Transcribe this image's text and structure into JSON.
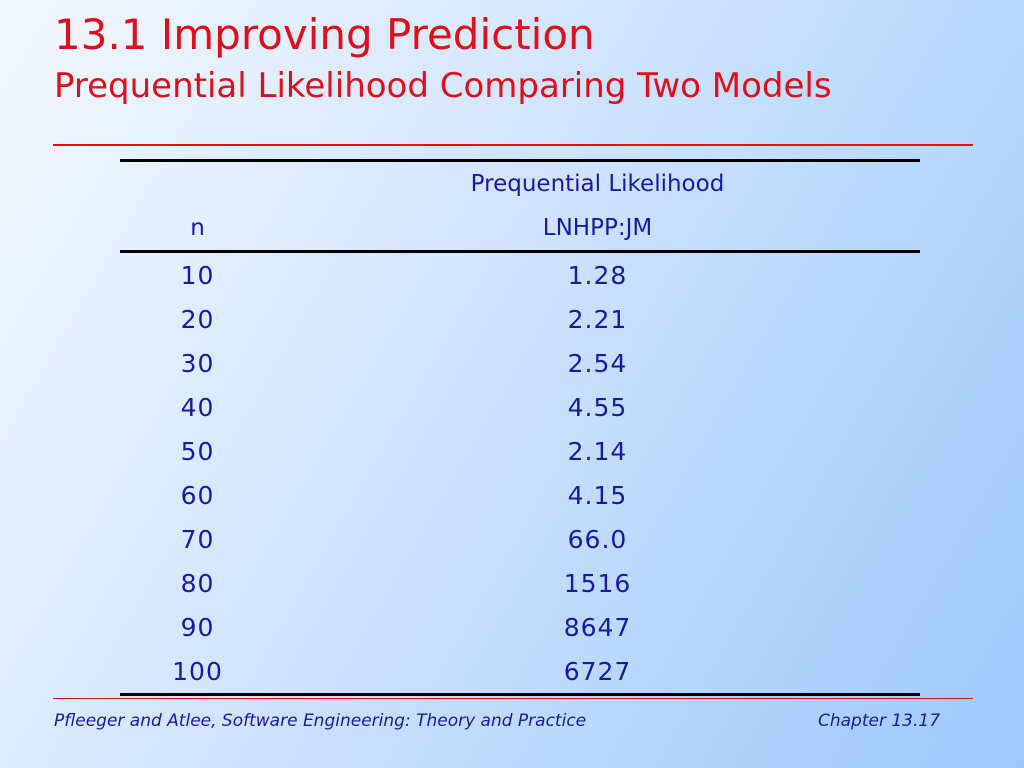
{
  "slide": {
    "title": "13.1 Improving Prediction",
    "subtitle": "Prequential Likelihood Comparing Two Models"
  },
  "table": {
    "header_top": [
      "",
      "Prequential Likelihood"
    ],
    "header_bottom": [
      "n",
      "LNHPP:JM"
    ],
    "rows": [
      {
        "n": "10",
        "value": "1.28"
      },
      {
        "n": "20",
        "value": "2.21"
      },
      {
        "n": "30",
        "value": "2.54"
      },
      {
        "n": "40",
        "value": "4.55"
      },
      {
        "n": "50",
        "value": "2.14"
      },
      {
        "n": "60",
        "value": "4.15"
      },
      {
        "n": "70",
        "value": "66.0"
      },
      {
        "n": "80",
        "value": "1516"
      },
      {
        "n": "90",
        "value": "8647"
      },
      {
        "n": "100",
        "value": "6727"
      }
    ]
  },
  "footer": {
    "left": "Pfleeger and Atlee, Software Engineering: Theory and Practice",
    "right": "Chapter 13.17"
  },
  "colors": {
    "title": "#e0101a",
    "text": "#1a1aa0",
    "rule": "#e0101a"
  }
}
